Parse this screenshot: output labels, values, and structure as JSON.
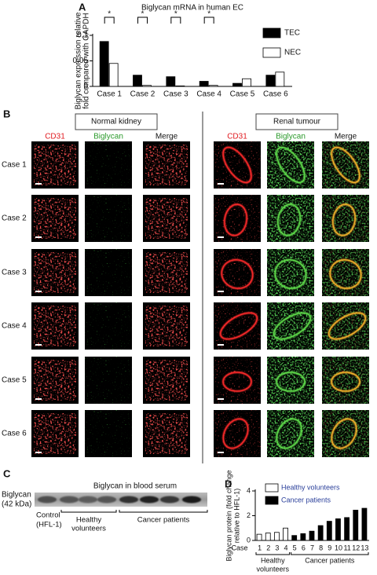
{
  "panels": {
    "a": "A",
    "b": "B",
    "c": "C",
    "d": "D"
  },
  "chart_data": [
    {
      "type": "bar",
      "title": "Biglycan mRNA in human EC",
      "ylabel": [
        "Biglycan expression relative",
        "fold compared with GAPDH"
      ],
      "categories": [
        "Case 1",
        "Case 2",
        "Case 3",
        "Case 4",
        "Case 5",
        "Case 6"
      ],
      "series": [
        {
          "name": "TEC",
          "color": "#000000",
          "values": [
            0.088,
            0.022,
            0.019,
            0.01,
            0.006,
            0.022
          ]
        },
        {
          "name": "NEC",
          "color": "#ffffff",
          "values": [
            0.045,
            0.002,
            0.001,
            0.002,
            0.015,
            0.028
          ]
        }
      ],
      "annotations": [
        "*",
        "*",
        "*",
        "*",
        null,
        null
      ],
      "ylim": [
        0,
        0.1
      ],
      "yticks": [
        0,
        0.05,
        0.1
      ],
      "legend": "right"
    },
    {
      "type": "bar",
      "ylabel": [
        "Biglycan protein (fold change",
        "relative to HFL-1)"
      ],
      "xlabel": "Case",
      "categories": [
        "1",
        "2",
        "3",
        "4",
        "5",
        "6",
        "7",
        "8",
        "9",
        "10",
        "11",
        "12",
        "13"
      ],
      "series": [
        {
          "name": "Healthy volunteers",
          "color": "#ffffff",
          "values": [
            0.5,
            0.6,
            0.65,
            1.0,
            null,
            null,
            null,
            null,
            null,
            null,
            null,
            null,
            null
          ]
        },
        {
          "name": "Cancer patients",
          "color": "#000000",
          "values": [
            null,
            null,
            null,
            null,
            0.4,
            0.55,
            0.75,
            1.2,
            1.55,
            1.75,
            1.85,
            2.45,
            2.6
          ]
        }
      ],
      "groups": [
        [
          "Healthy",
          "volunteers"
        ],
        [
          "Cancer patients"
        ]
      ],
      "legend_text_color": "#2a3f9a",
      "ylim": [
        0,
        4
      ],
      "yticks": [
        0,
        2,
        4
      ],
      "legend": "top-left"
    }
  ],
  "images": {
    "headers": [
      "Normal kidney",
      "Renal tumour"
    ],
    "columns": [
      "CD31",
      "Biglycan",
      "Merge"
    ],
    "rows": [
      "Case 1",
      "Case 2",
      "Case 3",
      "Case 4",
      "Case 5",
      "Case 6"
    ]
  },
  "blot": {
    "title": "Biglycan in blood serum",
    "label": [
      "Biglycan",
      "(42 kDa)"
    ],
    "control": [
      "Control",
      "(HFL-1)"
    ],
    "healthy": [
      "Healthy",
      "volunteers"
    ],
    "cancer": "Cancer patients"
  }
}
